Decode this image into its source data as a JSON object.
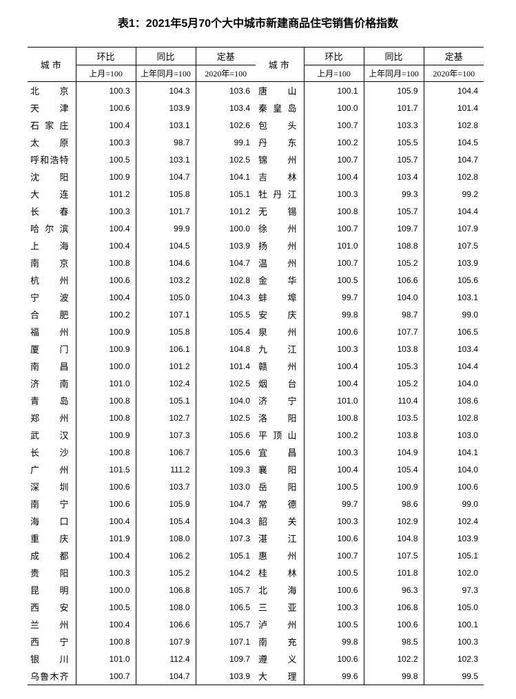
{
  "title": "表1：2021年5月70个大中城市新建商品住宅销售价格指数",
  "headers": {
    "city": "城市",
    "mom_group": "环比",
    "yoy_group": "同比",
    "base_group": "定基",
    "mom_sub": "上月=100",
    "yoy_sub": "上年同月=100",
    "base_sub": "2020年=100"
  },
  "left": [
    {
      "city": "北　　京",
      "mom": "100.3",
      "yoy": "104.3",
      "base": "103.6"
    },
    {
      "city": "天　　津",
      "mom": "100.6",
      "yoy": "103.9",
      "base": "103.4"
    },
    {
      "city": "石 家 庄",
      "mom": "100.4",
      "yoy": "103.1",
      "base": "102.6"
    },
    {
      "city": "太　　原",
      "mom": "100.3",
      "yoy": "98.7",
      "base": "99.1"
    },
    {
      "city": "呼和浩特",
      "mom": "100.5",
      "yoy": "103.1",
      "base": "102.5"
    },
    {
      "city": "沈　　阳",
      "mom": "100.9",
      "yoy": "104.7",
      "base": "104.1"
    },
    {
      "city": "大　　连",
      "mom": "101.2",
      "yoy": "105.8",
      "base": "105.1"
    },
    {
      "city": "长　　春",
      "mom": "100.3",
      "yoy": "101.7",
      "base": "101.2"
    },
    {
      "city": "哈 尔 滨",
      "mom": "100.4",
      "yoy": "99.9",
      "base": "100.0"
    },
    {
      "city": "上　　海",
      "mom": "100.4",
      "yoy": "104.5",
      "base": "103.9"
    },
    {
      "city": "南　　京",
      "mom": "100.8",
      "yoy": "104.6",
      "base": "104.7"
    },
    {
      "city": "杭　　州",
      "mom": "100.6",
      "yoy": "103.2",
      "base": "102.8"
    },
    {
      "city": "宁　　波",
      "mom": "100.4",
      "yoy": "105.0",
      "base": "104.3"
    },
    {
      "city": "合　　肥",
      "mom": "100.2",
      "yoy": "107.1",
      "base": "105.5"
    },
    {
      "city": "福　　州",
      "mom": "100.9",
      "yoy": "105.8",
      "base": "105.4"
    },
    {
      "city": "厦　　门",
      "mom": "100.9",
      "yoy": "106.1",
      "base": "104.8"
    },
    {
      "city": "南　　昌",
      "mom": "100.0",
      "yoy": "101.2",
      "base": "101.4"
    },
    {
      "city": "济　　南",
      "mom": "101.0",
      "yoy": "102.4",
      "base": "102.5"
    },
    {
      "city": "青　　岛",
      "mom": "100.8",
      "yoy": "105.1",
      "base": "104.0"
    },
    {
      "city": "郑　　州",
      "mom": "100.8",
      "yoy": "102.7",
      "base": "102.5"
    },
    {
      "city": "武　　汉",
      "mom": "100.9",
      "yoy": "107.3",
      "base": "105.6"
    },
    {
      "city": "长　　沙",
      "mom": "100.8",
      "yoy": "106.7",
      "base": "105.6"
    },
    {
      "city": "广　　州",
      "mom": "101.5",
      "yoy": "111.2",
      "base": "109.3"
    },
    {
      "city": "深　　圳",
      "mom": "100.6",
      "yoy": "103.7",
      "base": "103.0"
    },
    {
      "city": "南　　宁",
      "mom": "100.6",
      "yoy": "105.9",
      "base": "104.7"
    },
    {
      "city": "海　　口",
      "mom": "100.4",
      "yoy": "105.4",
      "base": "104.3"
    },
    {
      "city": "重　　庆",
      "mom": "101.9",
      "yoy": "108.0",
      "base": "107.3"
    },
    {
      "city": "成　　都",
      "mom": "100.4",
      "yoy": "106.2",
      "base": "105.1"
    },
    {
      "city": "贵　　阳",
      "mom": "100.3",
      "yoy": "105.2",
      "base": "104.2"
    },
    {
      "city": "昆　　明",
      "mom": "100.0",
      "yoy": "106.8",
      "base": "105.7"
    },
    {
      "city": "西　　安",
      "mom": "100.5",
      "yoy": "108.0",
      "base": "106.5"
    },
    {
      "city": "兰　　州",
      "mom": "100.4",
      "yoy": "106.6",
      "base": "105.7"
    },
    {
      "city": "西　　宁",
      "mom": "100.8",
      "yoy": "107.9",
      "base": "107.1"
    },
    {
      "city": "银　　川",
      "mom": "101.0",
      "yoy": "112.4",
      "base": "109.7"
    },
    {
      "city": "乌鲁木齐",
      "mom": "100.7",
      "yoy": "104.7",
      "base": "103.9"
    }
  ],
  "right": [
    {
      "city": "唐　　山",
      "mom": "100.1",
      "yoy": "105.9",
      "base": "104.4"
    },
    {
      "city": "秦 皇 岛",
      "mom": "100.0",
      "yoy": "101.7",
      "base": "101.4"
    },
    {
      "city": "包　　头",
      "mom": "100.7",
      "yoy": "103.3",
      "base": "102.8"
    },
    {
      "city": "丹　　东",
      "mom": "100.2",
      "yoy": "105.5",
      "base": "104.5"
    },
    {
      "city": "锦　　州",
      "mom": "100.7",
      "yoy": "105.7",
      "base": "104.7"
    },
    {
      "city": "吉　　林",
      "mom": "100.4",
      "yoy": "103.4",
      "base": "102.8"
    },
    {
      "city": "牡 丹 江",
      "mom": "100.3",
      "yoy": "99.3",
      "base": "99.2"
    },
    {
      "city": "无　　锡",
      "mom": "100.8",
      "yoy": "105.7",
      "base": "104.4"
    },
    {
      "city": "徐　　州",
      "mom": "100.7",
      "yoy": "109.7",
      "base": "107.9"
    },
    {
      "city": "扬　　州",
      "mom": "101.0",
      "yoy": "108.8",
      "base": "107.5"
    },
    {
      "city": "温　　州",
      "mom": "100.7",
      "yoy": "105.2",
      "base": "103.9"
    },
    {
      "city": "金　　华",
      "mom": "100.5",
      "yoy": "106.6",
      "base": "105.6"
    },
    {
      "city": "蚌　　埠",
      "mom": "99.7",
      "yoy": "104.0",
      "base": "103.1"
    },
    {
      "city": "安　　庆",
      "mom": "99.8",
      "yoy": "98.7",
      "base": "99.0"
    },
    {
      "city": "泉　　州",
      "mom": "100.6",
      "yoy": "107.7",
      "base": "106.5"
    },
    {
      "city": "九　　江",
      "mom": "100.3",
      "yoy": "103.8",
      "base": "103.4"
    },
    {
      "city": "赣　　州",
      "mom": "100.4",
      "yoy": "105.3",
      "base": "104.4"
    },
    {
      "city": "烟　　台",
      "mom": "100.4",
      "yoy": "105.2",
      "base": "104.0"
    },
    {
      "city": "济　　宁",
      "mom": "101.0",
      "yoy": "110.4",
      "base": "108.6"
    },
    {
      "city": "洛　　阳",
      "mom": "100.8",
      "yoy": "103.5",
      "base": "102.8"
    },
    {
      "city": "平 顶 山",
      "mom": "100.2",
      "yoy": "103.8",
      "base": "103.0"
    },
    {
      "city": "宜　　昌",
      "mom": "100.3",
      "yoy": "104.9",
      "base": "104.1"
    },
    {
      "city": "襄　　阳",
      "mom": "100.4",
      "yoy": "105.4",
      "base": "104.0"
    },
    {
      "city": "岳　　阳",
      "mom": "100.5",
      "yoy": "100.9",
      "base": "100.6"
    },
    {
      "city": "常　　德",
      "mom": "99.7",
      "yoy": "98.6",
      "base": "99.0"
    },
    {
      "city": "韶　　关",
      "mom": "100.3",
      "yoy": "102.9",
      "base": "102.4"
    },
    {
      "city": "湛　　江",
      "mom": "100.6",
      "yoy": "104.8",
      "base": "103.9"
    },
    {
      "city": "惠　　州",
      "mom": "100.7",
      "yoy": "107.5",
      "base": "105.1"
    },
    {
      "city": "桂　　林",
      "mom": "100.5",
      "yoy": "101.8",
      "base": "102.0"
    },
    {
      "city": "北　　海",
      "mom": "100.6",
      "yoy": "96.3",
      "base": "97.3"
    },
    {
      "city": "三　　亚",
      "mom": "100.3",
      "yoy": "106.8",
      "base": "105.0"
    },
    {
      "city": "泸　　州",
      "mom": "100.5",
      "yoy": "100.6",
      "base": "100.1"
    },
    {
      "city": "南　　充",
      "mom": "99.8",
      "yoy": "98.5",
      "base": "100.3"
    },
    {
      "city": "遵　　义",
      "mom": "100.6",
      "yoy": "102.2",
      "base": "102.3"
    },
    {
      "city": "大　　理",
      "mom": "99.6",
      "yoy": "99.8",
      "base": "99.5"
    }
  ]
}
